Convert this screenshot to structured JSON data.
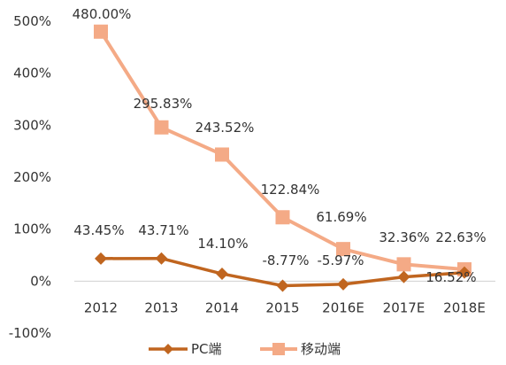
{
  "chart_data": {
    "type": "line",
    "categories": [
      "2012",
      "2013",
      "2014",
      "2015",
      "2016E",
      "2017E",
      "2018E"
    ],
    "ylim": [
      -100,
      500
    ],
    "yticks": [
      500,
      400,
      300,
      200,
      100,
      0,
      -100
    ],
    "ytick_labels": [
      "500%",
      "400%",
      "300%",
      "200%",
      "100%",
      "0%",
      "-100%"
    ],
    "grid": false,
    "legend_position": "bottom",
    "series": [
      {
        "name": "PC端",
        "color": "#c0651f",
        "marker": "diamond",
        "values": [
          43.45,
          43.71,
          14.1,
          -8.77,
          -5.97,
          8.0,
          16.52
        ],
        "labels": [
          "43.45%",
          "43.71%",
          "14.10%",
          "-8.77%",
          "-5.97%",
          "",
          "16.52%"
        ]
      },
      {
        "name": "移动端",
        "color": "#f4aa86",
        "marker": "square",
        "values": [
          480.0,
          295.83,
          243.52,
          122.84,
          61.69,
          32.36,
          22.63
        ],
        "labels": [
          "480.00%",
          "295.83%",
          "243.52%",
          "122.84%",
          "61.69%",
          "32.36%",
          "22.63%"
        ]
      }
    ]
  }
}
